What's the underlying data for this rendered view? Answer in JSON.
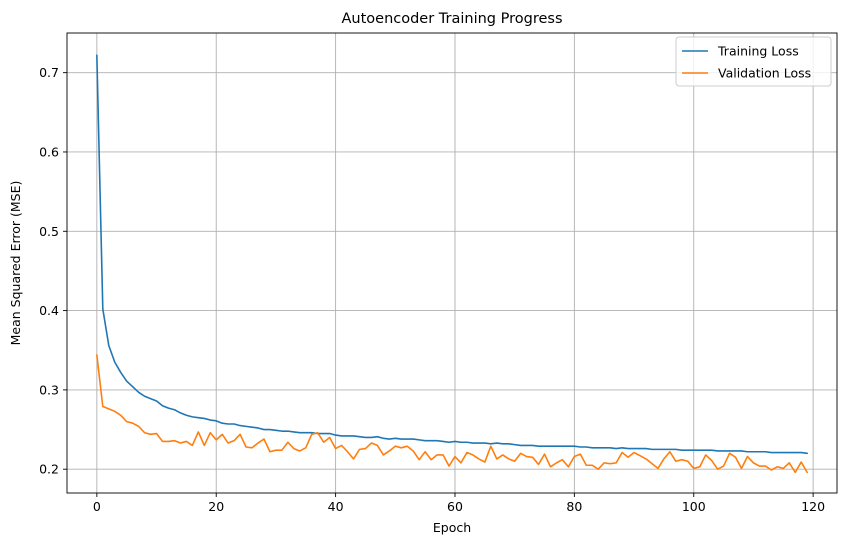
{
  "chart_data": {
    "type": "line",
    "title": "Autoencoder Training Progress",
    "xlabel": "Epoch",
    "ylabel": "Mean Squared Error (MSE)",
    "xlim": [
      -5,
      124
    ],
    "ylim": [
      0.17,
      0.75
    ],
    "xticks": [
      0,
      20,
      40,
      60,
      80,
      100,
      120
    ],
    "yticks": [
      0.2,
      0.3,
      0.4,
      0.5,
      0.6,
      0.7
    ],
    "grid": true,
    "legend_position": "top-right",
    "series": [
      {
        "name": "Training Loss",
        "color": "#1f77b4",
        "x": [
          0,
          1,
          2,
          3,
          4,
          5,
          6,
          7,
          8,
          9,
          10,
          11,
          12,
          13,
          14,
          15,
          16,
          17,
          18,
          19,
          20,
          21,
          22,
          23,
          24,
          25,
          26,
          27,
          28,
          29,
          30,
          31,
          32,
          33,
          34,
          35,
          36,
          37,
          38,
          39,
          40,
          41,
          42,
          43,
          44,
          45,
          46,
          47,
          48,
          49,
          50,
          51,
          52,
          53,
          54,
          55,
          56,
          57,
          58,
          59,
          60,
          61,
          62,
          63,
          64,
          65,
          66,
          67,
          68,
          69,
          70,
          71,
          72,
          73,
          74,
          75,
          76,
          77,
          78,
          79,
          80,
          81,
          82,
          83,
          84,
          85,
          86,
          87,
          88,
          89,
          90,
          91,
          92,
          93,
          94,
          95,
          96,
          97,
          98,
          99,
          100,
          101,
          102,
          103,
          104,
          105,
          106,
          107,
          108,
          109,
          110,
          111,
          112,
          113,
          114,
          115,
          116,
          117,
          118,
          119
        ],
        "values": [
          0.722,
          0.402,
          0.356,
          0.335,
          0.322,
          0.311,
          0.304,
          0.297,
          0.292,
          0.289,
          0.286,
          0.28,
          0.277,
          0.275,
          0.271,
          0.268,
          0.266,
          0.265,
          0.264,
          0.262,
          0.261,
          0.258,
          0.257,
          0.257,
          0.255,
          0.254,
          0.253,
          0.252,
          0.25,
          0.25,
          0.249,
          0.248,
          0.248,
          0.247,
          0.246,
          0.246,
          0.246,
          0.245,
          0.245,
          0.245,
          0.243,
          0.242,
          0.242,
          0.242,
          0.241,
          0.24,
          0.24,
          0.241,
          0.239,
          0.238,
          0.239,
          0.238,
          0.238,
          0.238,
          0.237,
          0.236,
          0.236,
          0.236,
          0.235,
          0.234,
          0.235,
          0.234,
          0.234,
          0.233,
          0.233,
          0.233,
          0.232,
          0.233,
          0.232,
          0.232,
          0.231,
          0.23,
          0.23,
          0.23,
          0.229,
          0.229,
          0.229,
          0.229,
          0.229,
          0.229,
          0.229,
          0.228,
          0.228,
          0.227,
          0.227,
          0.227,
          0.227,
          0.226,
          0.227,
          0.226,
          0.226,
          0.226,
          0.226,
          0.225,
          0.225,
          0.225,
          0.225,
          0.225,
          0.224,
          0.224,
          0.224,
          0.224,
          0.224,
          0.224,
          0.223,
          0.223,
          0.223,
          0.223,
          0.223,
          0.222,
          0.222,
          0.222,
          0.222,
          0.221,
          0.221,
          0.221,
          0.221,
          0.221,
          0.221,
          0.22
        ]
      },
      {
        "name": "Validation Loss",
        "color": "#ff7f0e",
        "x": [
          0,
          1,
          2,
          3,
          4,
          5,
          6,
          7,
          8,
          9,
          10,
          11,
          12,
          13,
          14,
          15,
          16,
          17,
          18,
          19,
          20,
          21,
          22,
          23,
          24,
          25,
          26,
          27,
          28,
          29,
          30,
          31,
          32,
          33,
          34,
          35,
          36,
          37,
          38,
          39,
          40,
          41,
          42,
          43,
          44,
          45,
          46,
          47,
          48,
          49,
          50,
          51,
          52,
          53,
          54,
          55,
          56,
          57,
          58,
          59,
          60,
          61,
          62,
          63,
          64,
          65,
          66,
          67,
          68,
          69,
          70,
          71,
          72,
          73,
          74,
          75,
          76,
          77,
          78,
          79,
          80,
          81,
          82,
          83,
          84,
          85,
          86,
          87,
          88,
          89,
          90,
          91,
          92,
          93,
          94,
          95,
          96,
          97,
          98,
          99,
          100,
          101,
          102,
          103,
          104,
          105,
          106,
          107,
          108,
          109,
          110,
          111,
          112,
          113,
          114,
          115,
          116,
          117,
          118,
          119
        ],
        "values": [
          0.344,
          0.279,
          0.276,
          0.273,
          0.268,
          0.26,
          0.258,
          0.254,
          0.246,
          0.244,
          0.245,
          0.235,
          0.235,
          0.236,
          0.233,
          0.235,
          0.23,
          0.247,
          0.23,
          0.246,
          0.237,
          0.244,
          0.233,
          0.236,
          0.244,
          0.228,
          0.227,
          0.233,
          0.238,
          0.222,
          0.224,
          0.224,
          0.234,
          0.226,
          0.223,
          0.227,
          0.244,
          0.246,
          0.234,
          0.24,
          0.226,
          0.23,
          0.222,
          0.213,
          0.225,
          0.226,
          0.233,
          0.23,
          0.218,
          0.223,
          0.229,
          0.227,
          0.229,
          0.223,
          0.212,
          0.222,
          0.212,
          0.218,
          0.218,
          0.204,
          0.216,
          0.208,
          0.221,
          0.218,
          0.213,
          0.209,
          0.229,
          0.213,
          0.218,
          0.213,
          0.21,
          0.22,
          0.216,
          0.215,
          0.206,
          0.219,
          0.203,
          0.208,
          0.212,
          0.203,
          0.216,
          0.219,
          0.205,
          0.205,
          0.2,
          0.208,
          0.207,
          0.208,
          0.221,
          0.215,
          0.221,
          0.217,
          0.213,
          0.207,
          0.201,
          0.213,
          0.222,
          0.21,
          0.212,
          0.21,
          0.201,
          0.203,
          0.218,
          0.211,
          0.2,
          0.204,
          0.22,
          0.215,
          0.201,
          0.216,
          0.208,
          0.204,
          0.204,
          0.199,
          0.203,
          0.201,
          0.208,
          0.196,
          0.209,
          0.196
        ]
      }
    ]
  }
}
